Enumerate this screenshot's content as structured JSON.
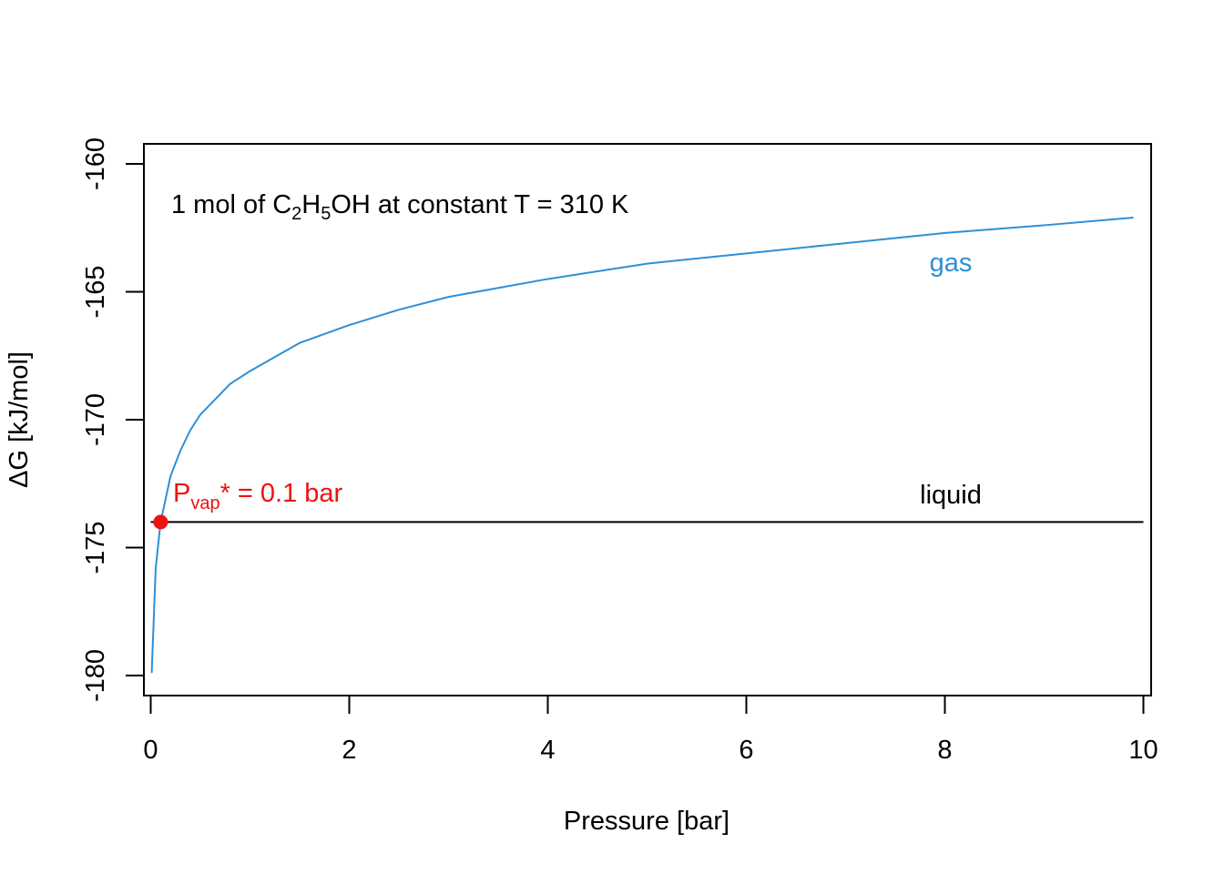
{
  "chart_data": {
    "type": "line",
    "title": "",
    "xlabel": "Pressure [bar]",
    "ylabel": "ΔG [kJ/mol]",
    "xlim": [
      0,
      10
    ],
    "ylim": [
      -180,
      -160
    ],
    "x_ticks": [
      0,
      2,
      4,
      6,
      8,
      10
    ],
    "x_tick_labels": [
      "0",
      "2",
      "4",
      "6",
      "8",
      "10"
    ],
    "y_ticks": [
      -180,
      -175,
      -170,
      -165,
      -160
    ],
    "y_tick_labels": [
      "-180",
      "-175",
      "-170",
      "-165",
      "-160"
    ],
    "grid": false,
    "annotation": {
      "prefix": "1 mol of C",
      "sub1": "2",
      "mid": "H",
      "sub2": "5",
      "suffix": "OH at constant T = 310 K"
    },
    "series": [
      {
        "name": "gas",
        "color": "#2e8fd6",
        "x": [
          0.01,
          0.05,
          0.1,
          0.2,
          0.3,
          0.4,
          0.5,
          0.6,
          0.8,
          1.0,
          1.5,
          2.0,
          2.5,
          3.0,
          4.0,
          5.0,
          6.0,
          7.0,
          8.0,
          9.0,
          9.9
        ],
        "y": [
          -179.9,
          -175.8,
          -174.0,
          -172.2,
          -171.2,
          -170.4,
          -169.8,
          -169.4,
          -168.6,
          -168.1,
          -167.0,
          -166.3,
          -165.7,
          -165.2,
          -164.5,
          -163.9,
          -163.5,
          -163.1,
          -162.7,
          -162.4,
          -162.1
        ]
      },
      {
        "name": "liquid",
        "color": "#000000",
        "x": [
          0,
          10
        ],
        "y": [
          -174.0,
          -174.0
        ]
      }
    ],
    "marker": {
      "x": 0.1,
      "y": -174.0,
      "color": "#ee1111",
      "label_p": "P",
      "label_sub": "vap",
      "label_rest": "* = 0.1 bar"
    }
  }
}
